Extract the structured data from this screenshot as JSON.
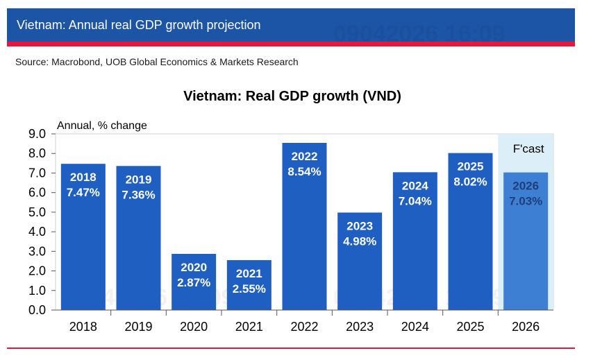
{
  "header": {
    "title": "Vietnam: Annual real GDP growth projection"
  },
  "source": "Source: Macrobond, UOB Global Economics & Markets Research",
  "watermark": "09042026 16:09",
  "colors": {
    "brand_blue": "#1C55A6",
    "accent_red": "#E5173F",
    "bar_actual": "#1F5FC1",
    "bar_forecast": "#3D7FD3",
    "forecast_bg": "#DCEFF8",
    "forecast_label": "#1F3F7A"
  },
  "chart_data": {
    "type": "bar",
    "title": "Vietnam: Real GDP growth (VND)",
    "ylabel": "Annual, % change",
    "xlabel": "",
    "ylim": [
      0,
      9
    ],
    "yticks": [
      "0.0",
      "1.0",
      "2.0",
      "3.0",
      "4.0",
      "5.0",
      "6.0",
      "7.0",
      "8.0",
      "9.0"
    ],
    "categories": [
      "2018",
      "2019",
      "2020",
      "2021",
      "2022",
      "2023",
      "2024",
      "2025",
      "2026"
    ],
    "values": [
      7.47,
      7.36,
      2.87,
      2.55,
      8.54,
      4.98,
      7.04,
      8.02,
      7.03
    ],
    "value_labels": [
      "7.47%",
      "7.36%",
      "2.87%",
      "2.55%",
      "8.54%",
      "4.98%",
      "7.04%",
      "8.02%",
      "7.03%"
    ],
    "forecast_label": "F'cast",
    "forecast_categories": [
      "2026"
    ]
  }
}
